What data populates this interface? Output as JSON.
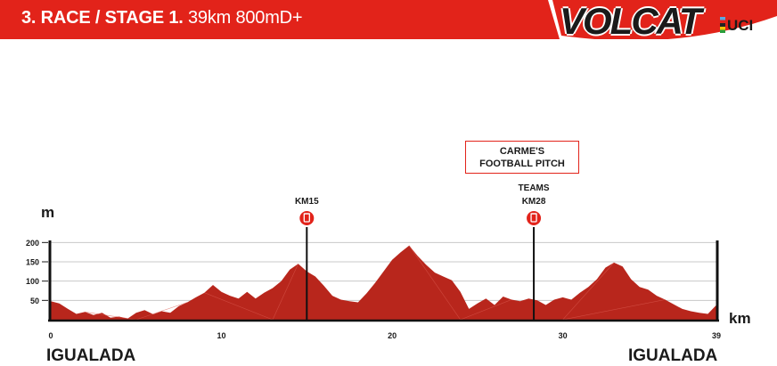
{
  "header": {
    "title_bold": "3. RACE / STAGE 1.",
    "title_light": "39km 800mD+",
    "logo": "VOLCAT",
    "uci": "UCI",
    "colors": {
      "banner": "#e2231a",
      "profile": "#b8261c"
    }
  },
  "chart_data": {
    "type": "area",
    "xlabel": "km",
    "ylabel": "m",
    "xlim": [
      0,
      39
    ],
    "ylim": [
      0,
      210
    ],
    "x_ticks": [
      0,
      10,
      20,
      30,
      39
    ],
    "y_ticks": [
      50,
      100,
      150,
      200
    ],
    "grid": true,
    "series": [
      {
        "x": [
          0,
          0.5,
          1,
          1.5,
          2,
          2.5,
          3,
          3.5,
          4,
          4.5,
          5,
          5.5,
          6,
          6.5,
          7,
          7.5,
          8,
          8.5,
          9,
          9.5,
          10,
          10.5,
          11,
          11.5,
          12,
          12.5,
          13,
          13.5,
          14,
          14.5,
          15,
          15.5,
          16,
          16.5,
          17,
          17.5,
          18,
          18.5,
          19,
          19.5,
          20,
          20.5,
          21,
          21.5,
          22,
          22.5,
          23,
          23.5,
          24,
          24.5,
          25,
          25.5,
          26,
          26.5,
          27,
          27.5,
          28,
          28.5,
          29,
          29.5,
          30,
          30.5,
          31,
          31.5,
          32,
          32.5,
          33,
          33.5,
          34,
          34.5,
          35,
          35.5,
          36,
          36.5,
          37,
          37.5,
          38,
          38.5,
          39
        ],
        "y": [
          48,
          42,
          28,
          15,
          20,
          12,
          18,
          5,
          8,
          3,
          18,
          25,
          14,
          22,
          18,
          35,
          45,
          58,
          70,
          90,
          72,
          62,
          55,
          72,
          55,
          70,
          82,
          100,
          130,
          145,
          125,
          112,
          88,
          62,
          52,
          48,
          45,
          68,
          95,
          125,
          155,
          175,
          192,
          165,
          142,
          122,
          112,
          102,
          72,
          28,
          42,
          55,
          38,
          60,
          52,
          48,
          55,
          50,
          38,
          52,
          58,
          52,
          70,
          85,
          105,
          135,
          148,
          138,
          105,
          85,
          78,
          62,
          52,
          40,
          28,
          22,
          18,
          15,
          38
        ]
      }
    ],
    "markers": [
      {
        "km": 15,
        "label": "KM15"
      },
      {
        "km": 28.3,
        "label_top": "TEAMS",
        "label": "KM28"
      }
    ],
    "callout": {
      "line1": "CARME'S",
      "line2": "FOOTBALL PITCH"
    },
    "start_label": "IGUALADA",
    "finish_label": "IGUALADA"
  }
}
